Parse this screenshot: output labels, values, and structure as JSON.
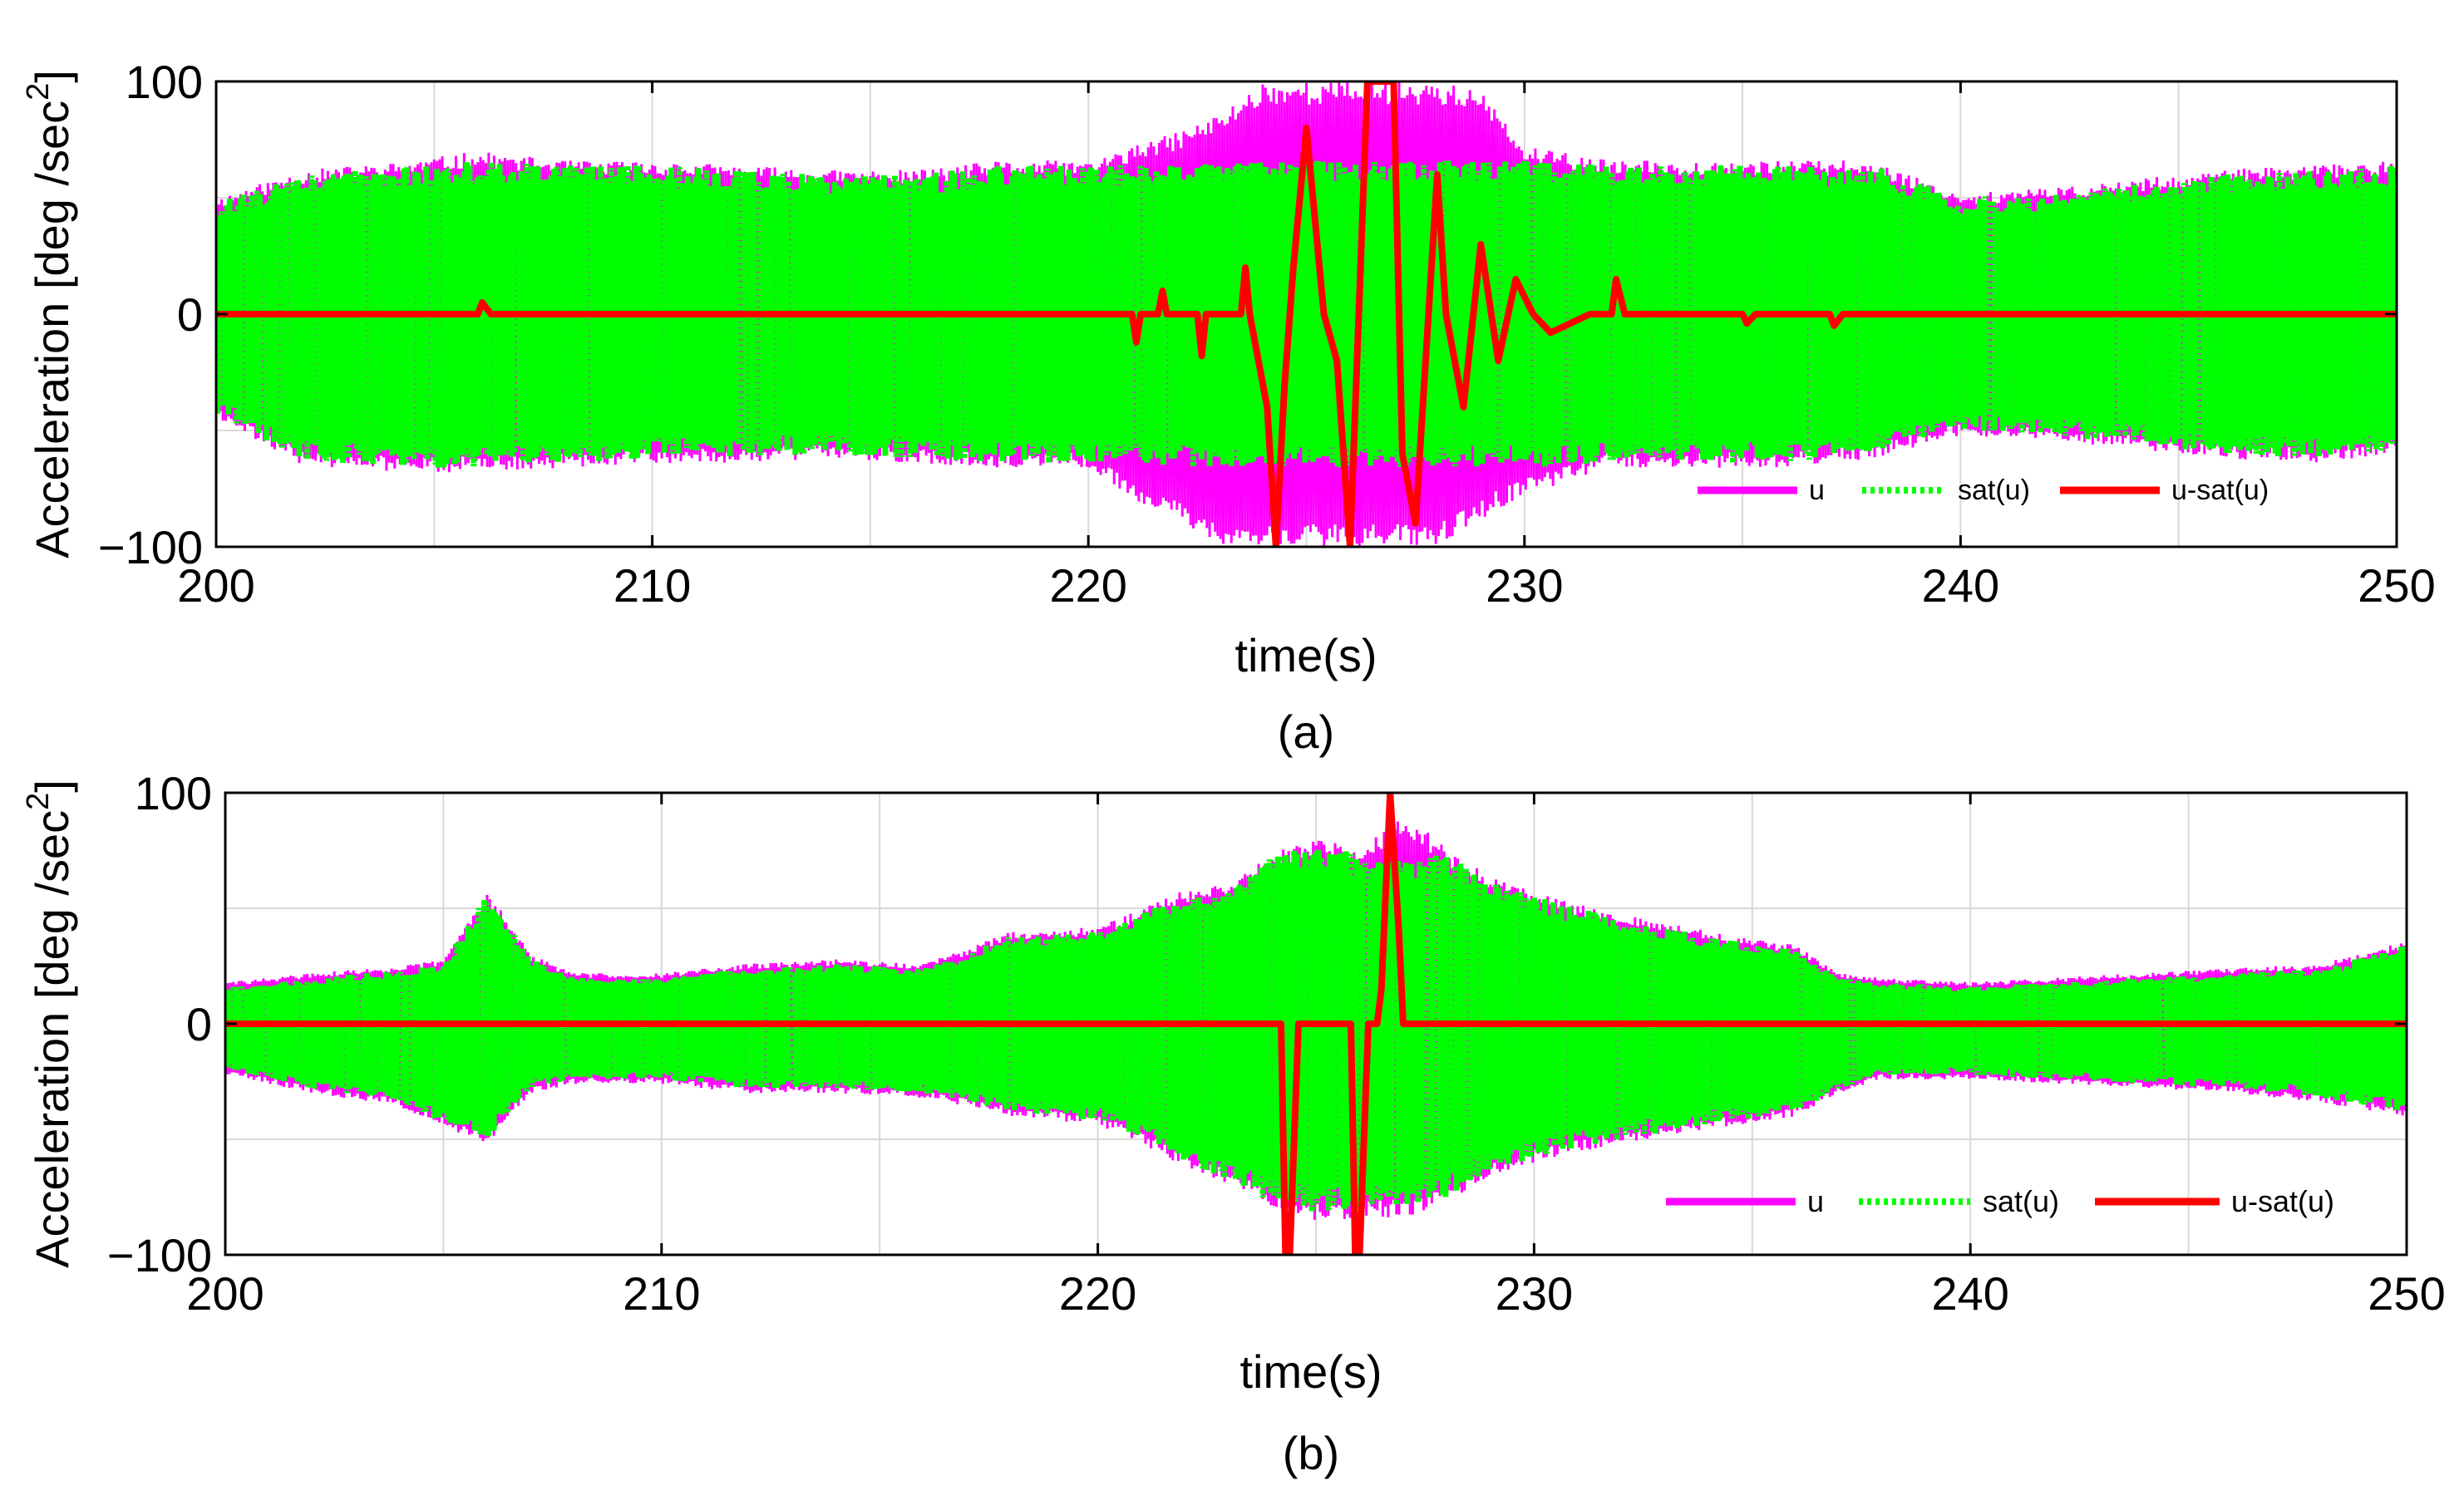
{
  "chart_data": [
    {
      "type": "line",
      "caption": "(a)",
      "xlabel": "time(s)",
      "ylabel": "Acceleration [deg /sec",
      "ylabel_sup": "2",
      "ylabel_close": "]",
      "xlim": [
        200,
        250
      ],
      "ylim": [
        -100,
        100
      ],
      "xticks": [
        200,
        210,
        220,
        230,
        240,
        250
      ],
      "yticks": [
        -100,
        0,
        100
      ],
      "grid": true,
      "legend_position": "bottom-right",
      "colors": {
        "u": "#ff00ff",
        "sat_u": "#00ff00",
        "u_minus_sat_u": "#ff0000"
      },
      "legend": [
        "u",
        "sat(u)",
        "u-sat(u)"
      ],
      "series": [
        {
          "name": "u",
          "style": "solid",
          "color": "#ff00ff",
          "envelope_time": [
            200,
            202,
            204,
            206,
            208,
            210,
            212,
            214,
            216,
            218,
            220,
            221,
            222,
            223,
            224,
            224.5,
            225,
            225.5,
            226,
            226.5,
            227,
            227.5,
            228,
            229,
            230,
            232,
            234,
            236,
            238,
            240,
            242,
            244,
            246,
            248,
            250
          ],
          "envelope_upper": [
            50,
            62,
            65,
            70,
            66,
            66,
            64,
            62,
            62,
            66,
            66,
            72,
            78,
            86,
            100,
            100,
            100,
            100,
            100,
            100,
            100,
            100,
            100,
            96,
            72,
            66,
            66,
            66,
            66,
            52,
            54,
            58,
            62,
            64,
            66
          ],
          "envelope_lower": [
            -45,
            -65,
            -68,
            -68,
            -66,
            -64,
            -64,
            -62,
            -64,
            -66,
            -66,
            -80,
            -88,
            -100,
            -100,
            -100,
            -100,
            -100,
            -100,
            -100,
            -100,
            -100,
            -100,
            -88,
            -78,
            -66,
            -66,
            -66,
            -62,
            -52,
            -54,
            -58,
            -62,
            -64,
            -60
          ]
        },
        {
          "name": "sat(u)",
          "style": "dotted",
          "color": "#00ff00",
          "envelope_time": [
            200,
            202,
            204,
            206,
            208,
            210,
            212,
            214,
            216,
            218,
            220,
            222,
            224,
            226,
            228,
            230,
            232,
            234,
            236,
            238,
            240,
            242,
            244,
            246,
            248,
            250
          ],
          "envelope_upper": [
            48,
            60,
            63,
            66,
            64,
            64,
            62,
            60,
            60,
            64,
            64,
            64,
            66,
            66,
            66,
            66,
            64,
            64,
            64,
            64,
            50,
            52,
            56,
            60,
            62,
            64
          ],
          "envelope_lower": [
            -43,
            -63,
            -66,
            -66,
            -64,
            -62,
            -62,
            -60,
            -62,
            -64,
            -64,
            -66,
            -66,
            -66,
            -66,
            -66,
            -64,
            -64,
            -64,
            -60,
            -50,
            -52,
            -56,
            -60,
            -62,
            -58
          ]
        },
        {
          "name": "u-sat(u)",
          "style": "solid",
          "color": "#ff0000",
          "t": [
            200,
            206,
            206.1,
            206.3,
            221,
            221.1,
            221.2,
            221.6,
            221.7,
            221.8,
            222.5,
            222.6,
            222.7,
            223.5,
            223.6,
            223.7,
            224.1,
            224.3,
            224.5,
            224.7,
            225.0,
            225.2,
            225.4,
            225.7,
            226.0,
            226.2,
            226.4,
            226.7,
            227.0,
            227.2,
            227.5,
            227.8,
            228.0,
            228.2,
            228.6,
            229.0,
            229.4,
            229.8,
            230.2,
            230.6,
            231.5,
            232.0,
            232.1,
            232.3,
            235,
            235.1,
            235.3,
            237,
            237.1,
            237.3,
            250
          ],
          "y": [
            0,
            0,
            5,
            0,
            0,
            -12,
            0,
            0,
            10,
            0,
            0,
            -18,
            0,
            0,
            20,
            0,
            -40,
            -100,
            -30,
            20,
            80,
            40,
            0,
            -20,
            -100,
            0,
            100,
            100,
            100,
            -60,
            -90,
            0,
            60,
            0,
            -40,
            30,
            -20,
            15,
            0,
            -8,
            0,
            0,
            15,
            0,
            0,
            -4,
            0,
            0,
            -5,
            0,
            0
          ]
        }
      ]
    },
    {
      "type": "line",
      "caption": "(b)",
      "xlabel": "time(s)",
      "ylabel": "Acceleration [deg /sec",
      "ylabel_sup": "2",
      "ylabel_close": "]",
      "xlim": [
        200,
        250
      ],
      "ylim": [
        -100,
        100
      ],
      "xticks": [
        200,
        210,
        220,
        230,
        240,
        250
      ],
      "yticks": [
        -100,
        0,
        100
      ],
      "grid": true,
      "legend_position": "bottom-right",
      "colors": {
        "u": "#ff00ff",
        "sat_u": "#00ff00",
        "u_minus_sat_u": "#ff0000"
      },
      "legend": [
        "u",
        "sat(u)",
        "u-sat(u)"
      ],
      "series": [
        {
          "name": "u",
          "style": "solid",
          "color": "#ff00ff",
          "envelope_time": [
            200,
            202,
            204,
            205,
            206,
            207,
            208,
            210,
            212,
            214,
            216,
            218,
            220,
            221,
            222,
            223,
            224,
            225,
            226,
            227,
            228,
            229,
            230,
            231,
            232,
            234,
            236,
            237,
            238,
            240,
            242,
            244,
            246,
            248,
            250
          ],
          "envelope_upper": [
            18,
            22,
            25,
            28,
            58,
            30,
            22,
            22,
            26,
            28,
            26,
            40,
            42,
            50,
            58,
            62,
            74,
            80,
            76,
            92,
            76,
            64,
            58,
            52,
            48,
            40,
            34,
            22,
            20,
            18,
            20,
            22,
            24,
            26,
            36
          ],
          "envelope_lower": [
            -22,
            -30,
            -36,
            -45,
            -52,
            -30,
            -26,
            -26,
            -30,
            -30,
            -32,
            -40,
            -44,
            -52,
            -62,
            -70,
            -80,
            -86,
            -84,
            -84,
            -78,
            -66,
            -60,
            -56,
            -52,
            -46,
            -40,
            -30,
            -24,
            -24,
            -26,
            -28,
            -30,
            -34,
            -40
          ]
        },
        {
          "name": "sat(u)",
          "style": "dotted",
          "color": "#00ff00",
          "envelope_time": [
            200,
            202,
            204,
            205,
            206,
            207,
            208,
            210,
            212,
            214,
            216,
            218,
            220,
            221,
            222,
            223,
            224,
            225,
            226,
            227,
            228,
            229,
            230,
            231,
            232,
            234,
            236,
            237,
            238,
            240,
            242,
            244,
            246,
            248,
            250
          ],
          "envelope_upper": [
            16,
            20,
            23,
            26,
            56,
            28,
            20,
            20,
            24,
            26,
            24,
            38,
            40,
            48,
            56,
            60,
            72,
            78,
            74,
            72,
            74,
            62,
            56,
            50,
            46,
            38,
            32,
            20,
            18,
            16,
            18,
            20,
            22,
            24,
            34
          ],
          "envelope_lower": [
            -20,
            -28,
            -34,
            -43,
            -50,
            -28,
            -24,
            -24,
            -28,
            -28,
            -30,
            -38,
            -42,
            -50,
            -60,
            -68,
            -78,
            -82,
            -80,
            -80,
            -76,
            -64,
            -58,
            -54,
            -50,
            -44,
            -38,
            -28,
            -22,
            -22,
            -24,
            -26,
            -28,
            -32,
            -38
          ]
        },
        {
          "name": "u-sat(u)",
          "style": "solid",
          "color": "#ff0000",
          "t": [
            200,
            224.2,
            224.3,
            224.4,
            224.6,
            225.8,
            225.9,
            226.0,
            226.2,
            226.4,
            226.5,
            226.7,
            226.9,
            227.0,
            227.2,
            250
          ],
          "y": [
            0,
            0,
            -100,
            -100,
            0,
            0,
            -100,
            -100,
            0,
            0,
            15,
            100,
            40,
            0,
            0,
            0
          ]
        }
      ]
    }
  ]
}
